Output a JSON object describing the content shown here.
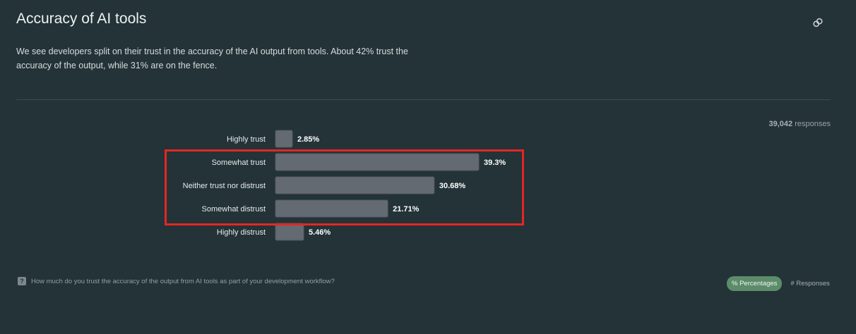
{
  "header": {
    "title": "Accuracy of AI tools",
    "description": "We see developers split on their trust in the accuracy of the AI output from tools. About 42% trust the accuracy of the output, while 31% are on the fence."
  },
  "responses": {
    "count": "39,042",
    "label": "responses"
  },
  "chart_data": {
    "type": "bar",
    "orientation": "horizontal",
    "categories": [
      "Highly trust",
      "Somewhat trust",
      "Neither trust nor distrust",
      "Somewhat distrust",
      "Highly distrust"
    ],
    "values": [
      2.85,
      39.3,
      30.68,
      21.71,
      5.46
    ],
    "value_labels": [
      "2.85%",
      "39.3%",
      "30.68%",
      "21.71%",
      "5.46%"
    ],
    "unit": "%",
    "highlighted_categories": [
      "Somewhat trust",
      "Neither trust nor distrust",
      "Somewhat distrust"
    ],
    "colors": {
      "bar_fill": "#646a71",
      "bar_stroke": "#525a61",
      "highlight": "#e52623"
    }
  },
  "footer": {
    "question": "How much do you trust the accuracy of the output from AI tools as part of your development workflow?",
    "question_icon": "question-icon",
    "toggle_percentages": "% Percentages",
    "toggle_responses": "# Responses"
  },
  "icons": {
    "link": "link-icon"
  }
}
